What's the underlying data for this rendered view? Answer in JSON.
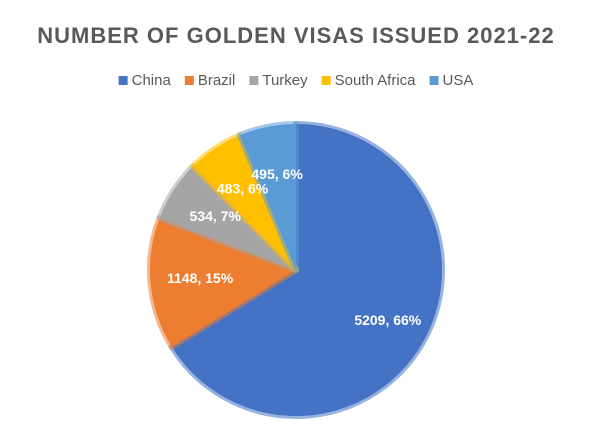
{
  "chart_data": {
    "type": "pie",
    "title": "NUMBER OF GOLDEN VISAS ISSUED 2021-22",
    "categories": [
      "China",
      "Brazil",
      "Turkey",
      "South Africa",
      "USA"
    ],
    "values": [
      5209,
      1148,
      534,
      483,
      495
    ],
    "value_labels": [
      "5209, 66%",
      "1148, 15%",
      "534, 7%",
      "483, 6%",
      "495, 6%"
    ],
    "colors": [
      "#4472c4",
      "#ed7d31",
      "#a5a5a5",
      "#ffc000",
      "#5b9bd5"
    ],
    "legend": "top"
  }
}
